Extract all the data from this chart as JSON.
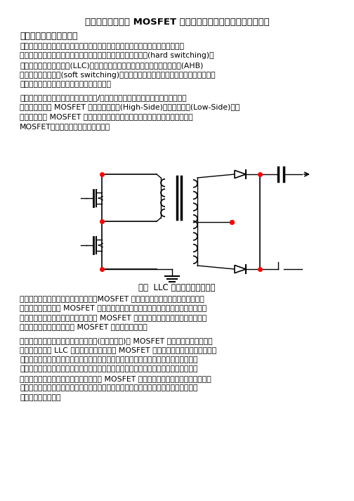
{
  "title": "半橋拓撲結搆高端 MOSFET 驅動方案選擇：變壓器還是矽晶片？",
  "subtitle": "本文由安森美半導體提供",
  "para1_lines": [
    "在節能環保意識的影響及世界各地最新效能規範的推動下，提高效能已經成為業界",
    "共識。與感應、組向、雙開關感應、雙開關組向和全橋半硬開關(hard switching)技",
    "術相比，雙重感加單諧音(LLC)、主動箱位感應、主動箱位組向、非對稱半橋(AHB)",
    "及移相全橋半軟開關(soft switching)技術能提供更高的效能。因此，在注重高效能的",
    "應用中，軟開關技術越來越受設計人員青睞。"
  ],
  "para2_lines": [
    "另一方面，半橋配置最適合提供高效能/高功率密度的中壓功率應用。半橋配置涉及",
    "兩種基本類型的 MOSFET 驅動器，即高端(High-Side)驅動器和低端(Low-Side)驅動",
    "器。高端表示 MOSFET 的源極能夠在地與高壓輸入電平之間浮動，而低端表示",
    "MOSFET的源極始終接地。參見圖一。"
  ],
  "fig_caption": "圖一  LLC 半橋拓撲結搆電路圖",
  "para3_lines": [
    "當高端開關從關閉狀態切換為導通時，MOSFET 源極電壓浮接電平上升至高壓輸入電",
    "壓平，這表示施加在 MOSFET 開關的電壓也必須進一步向上升，還要求半橋電子的高",
    "端或主動驅動電路路，是不不同，往往 MOSFET 的源端始終接地，故開端電壓電壓也",
    "能夠接地參考，通常是低端 MOSFET 的電壓更加簡單。"
  ],
  "para4_lines": [
    "所有驅動拓撲選擇都採用參考半全域封(以參考封組)的 MOSFET 閘極控制的功率開關。",
    "在如圖，所示的 LLC 半橋拓撲結搆中，高端 MOSFET 開關連接到高壓輸入匯流排（匯",
    "流排由，在某些情況下，可能難以感測），由於驅動電路路對高端半橋整合，供電開關控",
    "制功率開關控制功率控制功率控制功率開關控制功率開關控制功率開關控制，功率半橋頭",
    "來更複雜的功率電路，同時也能夠半高端 MOSFET 的電壓更加簡單，且在功率開關電路",
    "還需要控制驅動功率之間有另有著可能多時鐘抖動使得時鐘抖動使得時鐘抖動使得時鐘抖",
    "動抖動提供更多降。"
  ],
  "bg_color": "#ffffff",
  "text_color": "#000000"
}
